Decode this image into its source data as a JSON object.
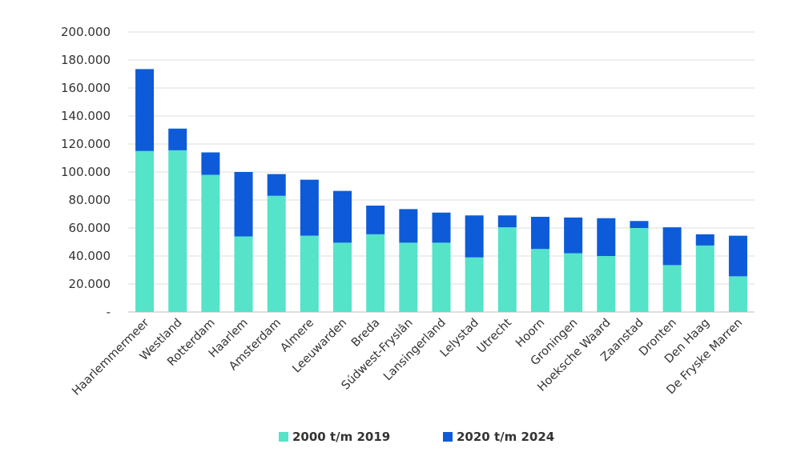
{
  "chart_data": {
    "type": "bar",
    "stacked": true,
    "categories": [
      "Haarlemmermeer",
      "Westland",
      "Rotterdam",
      "Haarlem",
      "Amsterdam",
      "Almere",
      "Leeuwarden",
      "Breda",
      "Súdwest-Fryslân",
      "Lansingerland",
      "Lelystad",
      "Utrecht",
      "Hoorn",
      "Groningen",
      "Hoeksche Waard",
      "Zaanstad",
      "Dronten",
      "Den Haag",
      "De Fryske Marren"
    ],
    "series": [
      {
        "name": "2000 t/m 2019",
        "color": "#55E3C9",
        "values": [
          115000,
          115500,
          98000,
          54000,
          83000,
          54500,
          49500,
          55500,
          49500,
          49500,
          39000,
          60500,
          45000,
          42000,
          40000,
          60000,
          33500,
          47500,
          25500
        ]
      },
      {
        "name": "2020 t/m 2024",
        "color": "#0D5BD8",
        "values": [
          58500,
          15500,
          16000,
          46000,
          15500,
          40000,
          37000,
          20500,
          24000,
          21500,
          30000,
          8500,
          23000,
          25500,
          27000,
          5000,
          27000,
          8000,
          29000
        ]
      }
    ],
    "y_ticks": [
      "-",
      "20.000",
      "40.000",
      "60.000",
      "80.000",
      "100.000",
      "120.000",
      "140.000",
      "160.000",
      "180.000",
      "200.000"
    ],
    "ylim": [
      0,
      200000
    ],
    "grid": true,
    "legend_position": "bottom"
  }
}
